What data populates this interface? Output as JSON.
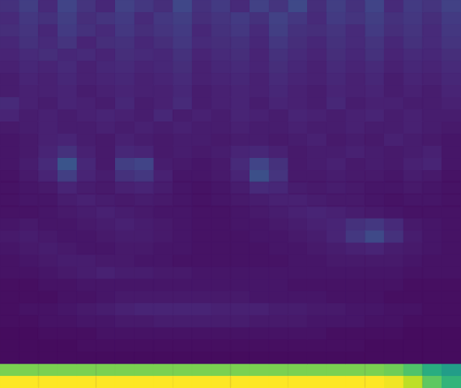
{
  "chart_data": {
    "type": "heatmap",
    "color": "viridis",
    "zlim": [
      0,
      100
    ],
    "tick_labels": false,
    "grid": false,
    "cells": [
      [
        14,
        18,
        12,
        20,
        15,
        11,
        19,
        16,
        13,
        21,
        14,
        17,
        12,
        19,
        15,
        22,
        13,
        18,
        14,
        20,
        12,
        17,
        15,
        19
      ],
      [
        12,
        16,
        14,
        18,
        13,
        15,
        17,
        12,
        16,
        18,
        13,
        15,
        17,
        14,
        19,
        16,
        12,
        17,
        15,
        18,
        14,
        16,
        13,
        17
      ],
      [
        13,
        15,
        11,
        17,
        14,
        12,
        16,
        13,
        15,
        17,
        11,
        14,
        16,
        12,
        18,
        14,
        13,
        15,
        12,
        17,
        13,
        15,
        12,
        16
      ],
      [
        11,
        14,
        12,
        15,
        10,
        13,
        14,
        11,
        13,
        16,
        12,
        13,
        14,
        11,
        16,
        13,
        11,
        14,
        12,
        15,
        11,
        14,
        12,
        15
      ],
      [
        10,
        12,
        13,
        11,
        12,
        10,
        13,
        12,
        11,
        14,
        10,
        12,
        13,
        10,
        14,
        12,
        10,
        13,
        11,
        14,
        10,
        12,
        11,
        13
      ],
      [
        9,
        11,
        10,
        12,
        9,
        11,
        12,
        10,
        11,
        13,
        9,
        11,
        12,
        10,
        13,
        11,
        9,
        12,
        10,
        12,
        9,
        11,
        10,
        12
      ],
      [
        8,
        10,
        9,
        11,
        9,
        10,
        11,
        9,
        10,
        12,
        9,
        10,
        11,
        9,
        12,
        10,
        9,
        11,
        9,
        11,
        8,
        10,
        9,
        11
      ],
      [
        8,
        9,
        9,
        10,
        8,
        9,
        10,
        9,
        9,
        11,
        8,
        9,
        10,
        9,
        11,
        9,
        8,
        10,
        9,
        10,
        8,
        9,
        8,
        10
      ],
      [
        12,
        9,
        8,
        10,
        9,
        8,
        11,
        8,
        9,
        12,
        8,
        9,
        10,
        8,
        10,
        9,
        8,
        11,
        8,
        9,
        9,
        8,
        8,
        9
      ],
      [
        10,
        8,
        9,
        8,
        9,
        10,
        9,
        8,
        11,
        8,
        9,
        8,
        10,
        9,
        8,
        10,
        9,
        8,
        9,
        10,
        8,
        9,
        8,
        8
      ],
      [
        7,
        8,
        9,
        8,
        8,
        9,
        8,
        9,
        8,
        9,
        8,
        8,
        9,
        8,
        8,
        9,
        8,
        8,
        9,
        8,
        8,
        9,
        8,
        7
      ],
      [
        6,
        7,
        9,
        10,
        8,
        7,
        9,
        8,
        7,
        8,
        8,
        7,
        8,
        8,
        7,
        8,
        9,
        7,
        8,
        7,
        9,
        8,
        7,
        6
      ],
      [
        6,
        7,
        10,
        14,
        9,
        7,
        11,
        10,
        7,
        8,
        7,
        8,
        10,
        11,
        9,
        7,
        8,
        8,
        9,
        8,
        7,
        8,
        9,
        6
      ],
      [
        6,
        8,
        12,
        26,
        11,
        7,
        18,
        20,
        8,
        7,
        6,
        7,
        12,
        20,
        14,
        7,
        8,
        9,
        7,
        8,
        7,
        9,
        10,
        6
      ],
      [
        5,
        7,
        10,
        18,
        10,
        8,
        14,
        16,
        9,
        6,
        6,
        7,
        10,
        24,
        15,
        7,
        7,
        8,
        7,
        7,
        6,
        8,
        7,
        5
      ],
      [
        5,
        6,
        7,
        10,
        8,
        7,
        9,
        10,
        8,
        6,
        5,
        6,
        8,
        12,
        11,
        8,
        7,
        8,
        7,
        6,
        6,
        7,
        6,
        5
      ],
      [
        5,
        6,
        6,
        8,
        9,
        8,
        7,
        8,
        7,
        6,
        5,
        6,
        7,
        8,
        9,
        9,
        8,
        7,
        7,
        6,
        5,
        6,
        6,
        5
      ],
      [
        5,
        5,
        6,
        7,
        8,
        9,
        8,
        7,
        6,
        6,
        5,
        5,
        6,
        7,
        8,
        9,
        10,
        9,
        8,
        7,
        6,
        5,
        5,
        5
      ],
      [
        6,
        7,
        6,
        6,
        7,
        8,
        9,
        8,
        7,
        6,
        5,
        5,
        6,
        6,
        7,
        8,
        9,
        10,
        14,
        16,
        12,
        7,
        6,
        5
      ],
      [
        7,
        8,
        7,
        6,
        6,
        7,
        8,
        8,
        7,
        6,
        5,
        5,
        5,
        6,
        6,
        7,
        8,
        10,
        16,
        22,
        14,
        8,
        6,
        5
      ],
      [
        6,
        7,
        8,
        7,
        6,
        6,
        7,
        7,
        6,
        6,
        5,
        5,
        5,
        5,
        6,
        6,
        7,
        8,
        9,
        10,
        8,
        7,
        6,
        5
      ],
      [
        5,
        6,
        7,
        8,
        8,
        7,
        7,
        6,
        6,
        5,
        5,
        5,
        5,
        5,
        5,
        6,
        6,
        7,
        7,
        7,
        7,
        6,
        5,
        5
      ],
      [
        5,
        5,
        6,
        7,
        8,
        9,
        8,
        8,
        7,
        7,
        6,
        6,
        6,
        6,
        6,
        6,
        6,
        6,
        6,
        6,
        6,
        5,
        5,
        5
      ],
      [
        4,
        4,
        5,
        5,
        6,
        6,
        6,
        6,
        6,
        6,
        6,
        6,
        6,
        6,
        6,
        5,
        5,
        5,
        5,
        5,
        5,
        4,
        4,
        4
      ],
      [
        4,
        4,
        4,
        5,
        5,
        6,
        7,
        7,
        7,
        7,
        7,
        7,
        7,
        6,
        6,
        6,
        6,
        5,
        5,
        5,
        4,
        4,
        4,
        4
      ],
      [
        4,
        5,
        5,
        6,
        7,
        8,
        9,
        10,
        10,
        10,
        10,
        9,
        9,
        9,
        8,
        8,
        7,
        7,
        6,
        6,
        5,
        5,
        4,
        4
      ],
      [
        4,
        4,
        5,
        5,
        6,
        6,
        7,
        7,
        8,
        8,
        8,
        8,
        8,
        7,
        7,
        7,
        6,
        6,
        6,
        5,
        5,
        4,
        4,
        4
      ],
      [
        3,
        3,
        4,
        4,
        4,
        5,
        5,
        5,
        5,
        5,
        5,
        5,
        5,
        5,
        5,
        5,
        5,
        4,
        4,
        4,
        4,
        3,
        3,
        3
      ],
      [
        3,
        3,
        3,
        3,
        4,
        4,
        4,
        4,
        4,
        4,
        4,
        4,
        4,
        4,
        4,
        4,
        4,
        4,
        4,
        3,
        3,
        3,
        3,
        3
      ],
      [
        3,
        3,
        3,
        3,
        3,
        3,
        3,
        3,
        3,
        3,
        3,
        3,
        3,
        3,
        3,
        3,
        3,
        3,
        3,
        3,
        3,
        3,
        3,
        3
      ],
      [
        80,
        80,
        80,
        80,
        80,
        80,
        80,
        80,
        80,
        80,
        80,
        80,
        80,
        80,
        80,
        80,
        80,
        80,
        80,
        80,
        78,
        72,
        62,
        55
      ],
      [
        100,
        100,
        100,
        100,
        100,
        100,
        100,
        100,
        100,
        100,
        100,
        100,
        100,
        100,
        100,
        100,
        100,
        100,
        100,
        100,
        98,
        90,
        75,
        65
      ]
    ]
  }
}
